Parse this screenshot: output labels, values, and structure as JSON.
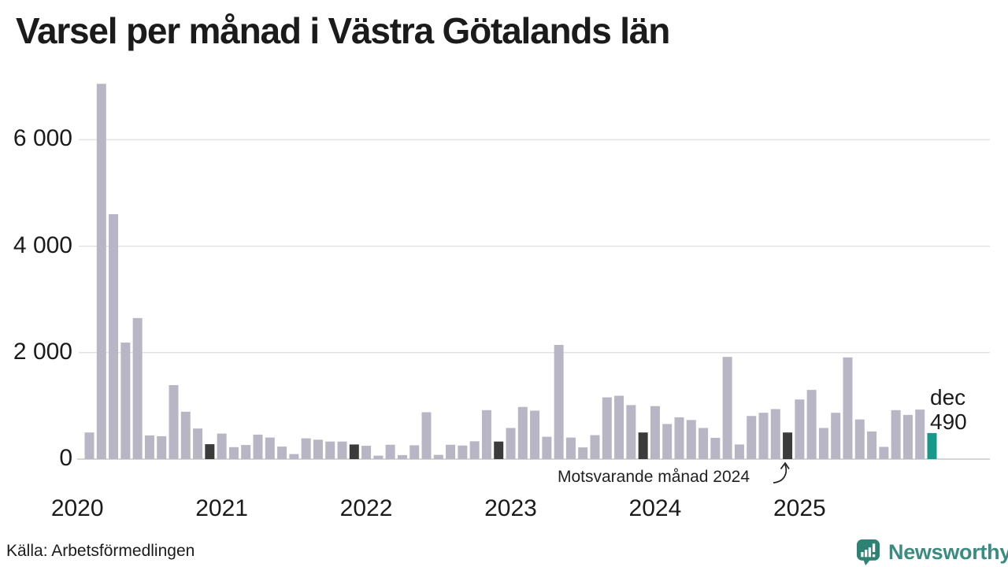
{
  "title": "Varsel per månad i Västra Götalands län",
  "source": "Källa: Arbetsförmedlingen",
  "branding": {
    "name": "Newsworthy",
    "icon": "newsworthy-speech-bubble-bar-chart-icon"
  },
  "annotation": {
    "text": "Motsvarande månad 2024",
    "target_month": "dec 2024"
  },
  "highlight": {
    "month_label": "dec",
    "value_label": "490"
  },
  "colors": {
    "bar_default": "#b8b5c4",
    "bar_compare": "#3b3b3b",
    "bar_accent": "#16988a",
    "gridline": "#e2e2e2",
    "axis_line": "#d6d6d6",
    "text": "#1b1b1b",
    "annotation_ink": "#222222",
    "brand_teal": "#3a8b80",
    "brand_icon_teal": "#2e8274"
  },
  "chart_data": {
    "type": "bar",
    "title": "Varsel per månad i Västra Götalands län",
    "x_year_labels": [
      "2020",
      "2021",
      "2022",
      "2023",
      "2024",
      "2025"
    ],
    "y_ticks": [
      {
        "label": "0",
        "value": 0
      },
      {
        "label": "2 000",
        "value": 2000
      },
      {
        "label": "4 000",
        "value": 4000
      },
      {
        "label": "6 000",
        "value": 6000
      }
    ],
    "ylim": [
      0,
      7200
    ],
    "grid": "horizontal",
    "legend": "none",
    "series": [
      {
        "month": "feb 2020",
        "value": 500,
        "role": "default"
      },
      {
        "month": "mar 2020",
        "value": 7050,
        "role": "default"
      },
      {
        "month": "apr 2020",
        "value": 4600,
        "role": "default"
      },
      {
        "month": "maj 2020",
        "value": 2190,
        "role": "default"
      },
      {
        "month": "jun 2020",
        "value": 2650,
        "role": "default"
      },
      {
        "month": "jul 2020",
        "value": 445,
        "role": "default"
      },
      {
        "month": "aug 2020",
        "value": 430,
        "role": "default"
      },
      {
        "month": "sep 2020",
        "value": 1390,
        "role": "default"
      },
      {
        "month": "okt 2020",
        "value": 890,
        "role": "default"
      },
      {
        "month": "nov 2020",
        "value": 575,
        "role": "default"
      },
      {
        "month": "dec 2020",
        "value": 280,
        "role": "compare"
      },
      {
        "month": "jan 2021",
        "value": 480,
        "role": "default"
      },
      {
        "month": "feb 2021",
        "value": 225,
        "role": "default"
      },
      {
        "month": "mar 2021",
        "value": 265,
        "role": "default"
      },
      {
        "month": "apr 2021",
        "value": 460,
        "role": "default"
      },
      {
        "month": "maj 2021",
        "value": 405,
        "role": "default"
      },
      {
        "month": "jun 2021",
        "value": 235,
        "role": "default"
      },
      {
        "month": "jul 2021",
        "value": 95,
        "role": "default"
      },
      {
        "month": "aug 2021",
        "value": 390,
        "role": "default"
      },
      {
        "month": "sep 2021",
        "value": 365,
        "role": "default"
      },
      {
        "month": "okt 2021",
        "value": 330,
        "role": "default"
      },
      {
        "month": "nov 2021",
        "value": 330,
        "role": "default"
      },
      {
        "month": "dec 2021",
        "value": 275,
        "role": "compare"
      },
      {
        "month": "jan 2022",
        "value": 250,
        "role": "default"
      },
      {
        "month": "feb 2022",
        "value": 65,
        "role": "default"
      },
      {
        "month": "mar 2022",
        "value": 270,
        "role": "default"
      },
      {
        "month": "apr 2022",
        "value": 75,
        "role": "default"
      },
      {
        "month": "maj 2022",
        "value": 260,
        "role": "default"
      },
      {
        "month": "jun 2022",
        "value": 880,
        "role": "default"
      },
      {
        "month": "jul 2022",
        "value": 80,
        "role": "default"
      },
      {
        "month": "aug 2022",
        "value": 270,
        "role": "default"
      },
      {
        "month": "sep 2022",
        "value": 255,
        "role": "default"
      },
      {
        "month": "okt 2022",
        "value": 335,
        "role": "default"
      },
      {
        "month": "nov 2022",
        "value": 920,
        "role": "default"
      },
      {
        "month": "dec 2022",
        "value": 330,
        "role": "compare"
      },
      {
        "month": "jan 2023",
        "value": 585,
        "role": "default"
      },
      {
        "month": "feb 2023",
        "value": 980,
        "role": "default"
      },
      {
        "month": "mar 2023",
        "value": 910,
        "role": "default"
      },
      {
        "month": "apr 2023",
        "value": 420,
        "role": "default"
      },
      {
        "month": "maj 2023",
        "value": 2145,
        "role": "default"
      },
      {
        "month": "jun 2023",
        "value": 405,
        "role": "default"
      },
      {
        "month": "jul 2023",
        "value": 220,
        "role": "default"
      },
      {
        "month": "aug 2023",
        "value": 450,
        "role": "default"
      },
      {
        "month": "sep 2023",
        "value": 1160,
        "role": "default"
      },
      {
        "month": "okt 2023",
        "value": 1190,
        "role": "default"
      },
      {
        "month": "nov 2023",
        "value": 1015,
        "role": "default"
      },
      {
        "month": "dec 2023",
        "value": 500,
        "role": "compare"
      },
      {
        "month": "jan 2024",
        "value": 995,
        "role": "default"
      },
      {
        "month": "feb 2024",
        "value": 660,
        "role": "default"
      },
      {
        "month": "mar 2024",
        "value": 785,
        "role": "default"
      },
      {
        "month": "apr 2024",
        "value": 735,
        "role": "default"
      },
      {
        "month": "maj 2024",
        "value": 585,
        "role": "default"
      },
      {
        "month": "jun 2024",
        "value": 400,
        "role": "default"
      },
      {
        "month": "jul 2024",
        "value": 1920,
        "role": "default"
      },
      {
        "month": "aug 2024",
        "value": 275,
        "role": "default"
      },
      {
        "month": "sep 2024",
        "value": 810,
        "role": "default"
      },
      {
        "month": "okt 2024",
        "value": 870,
        "role": "default"
      },
      {
        "month": "nov 2024",
        "value": 940,
        "role": "default"
      },
      {
        "month": "dec 2024",
        "value": 500,
        "role": "compare"
      },
      {
        "month": "jan 2025",
        "value": 1120,
        "role": "default"
      },
      {
        "month": "feb 2025",
        "value": 1300,
        "role": "default"
      },
      {
        "month": "mar 2025",
        "value": 585,
        "role": "default"
      },
      {
        "month": "apr 2025",
        "value": 870,
        "role": "default"
      },
      {
        "month": "maj 2025",
        "value": 1910,
        "role": "default"
      },
      {
        "month": "jun 2025",
        "value": 745,
        "role": "default"
      },
      {
        "month": "jul 2025",
        "value": 520,
        "role": "default"
      },
      {
        "month": "aug 2025",
        "value": 230,
        "role": "default"
      },
      {
        "month": "sep 2025",
        "value": 920,
        "role": "default"
      },
      {
        "month": "okt 2025",
        "value": 830,
        "role": "default"
      },
      {
        "month": "nov 2025",
        "value": 930,
        "role": "default"
      },
      {
        "month": "dec 2025",
        "value": 490,
        "role": "accent"
      }
    ]
  }
}
